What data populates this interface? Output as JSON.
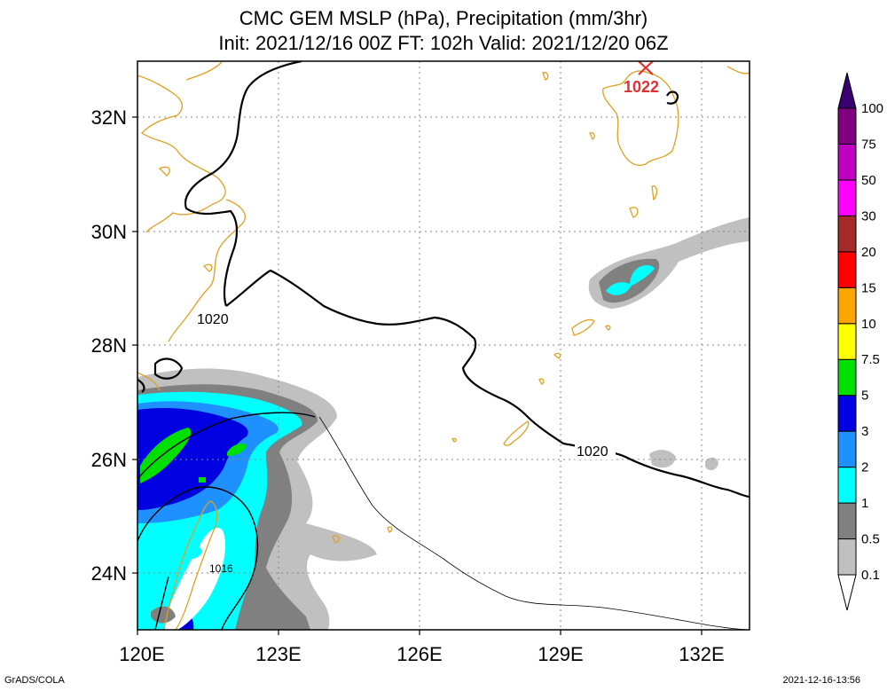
{
  "title": {
    "line1": "CMC GEM MSLP (hPa), Precipitation (mm/3hr)",
    "line2": "Init: 2021/12/16 00Z  FT: 102h  Valid: 2021/12/20 06Z"
  },
  "map": {
    "lon_range": [
      120,
      133
    ],
    "lat_range": [
      23,
      33
    ],
    "x_ticks": [
      {
        "lon": 120,
        "label": "120E"
      },
      {
        "lon": 123,
        "label": "123E"
      },
      {
        "lon": 126,
        "label": "126E"
      },
      {
        "lon": 129,
        "label": "129E"
      },
      {
        "lon": 132,
        "label": "132E"
      }
    ],
    "y_ticks": [
      {
        "lat": 24,
        "label": "24N"
      },
      {
        "lat": 26,
        "label": "26N"
      },
      {
        "lat": 28,
        "label": "28N"
      },
      {
        "lat": 30,
        "label": "30N"
      },
      {
        "lat": 32,
        "label": "32N"
      }
    ],
    "grid": "dotted",
    "coast_color": "#e0a020",
    "isobar_labels": [
      {
        "text": "1020",
        "lon": 121.7,
        "lat": 28.45
      },
      {
        "text": "1020",
        "lon": 129.7,
        "lat": 26.15
      },
      {
        "text": "1016",
        "lon": 121.8,
        "lat": 24.1
      }
    ],
    "high_center": {
      "label": "1022",
      "lon": 130.8,
      "lat": 32.85,
      "color": "#e03030"
    }
  },
  "colorbar": {
    "labels": [
      "0.1",
      "0.5",
      "1",
      "2",
      "3",
      "5",
      "7.5",
      "10",
      "15",
      "20",
      "30",
      "50",
      "75",
      "100"
    ],
    "colors": [
      "#ffffff",
      "#c0c0c0",
      "#808080",
      "#00ffff",
      "#1e90ff",
      "#0000e0",
      "#00e000",
      "#ffff00",
      "#ffa500",
      "#ff0000",
      "#a52a2a",
      "#ff00ff",
      "#c000c0",
      "#800080",
      "#3a0070"
    ]
  },
  "footer": {
    "left": "GrADS/COLA",
    "right": "2021-12-16-13:56"
  }
}
